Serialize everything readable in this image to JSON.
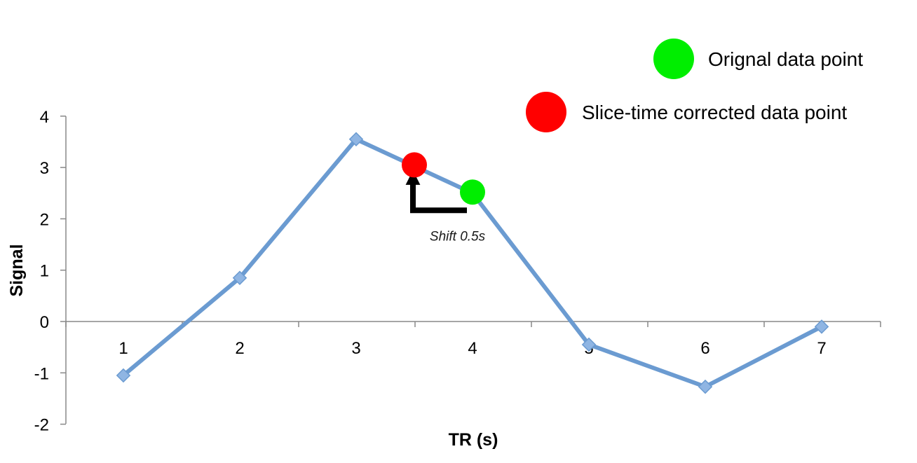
{
  "chart_data": {
    "type": "line",
    "title": "",
    "xlabel": "TR (s)",
    "ylabel": "Signal",
    "x": [
      1,
      2,
      3,
      4,
      5,
      6,
      7
    ],
    "categories": [
      "1",
      "2",
      "3",
      "4",
      "5",
      "6",
      "7"
    ],
    "ylim": [
      -2,
      4
    ],
    "yticks": [
      "4",
      "3",
      "2",
      "1",
      "0",
      "-1",
      "-2"
    ],
    "series": [
      {
        "values": [
          -1.05,
          0.85,
          3.55,
          2.5,
          -0.45,
          -1.27,
          -0.1
        ]
      }
    ],
    "highlight_points": [
      {
        "label": "Orignal data point",
        "x": 4,
        "y": 2.52,
        "color": "#00ee00"
      },
      {
        "label": "Slice-time corrected data point",
        "x": 3.5,
        "y": 3.05,
        "color": "#ff0000"
      }
    ],
    "annotation": {
      "text": "Shift 0.5s"
    },
    "line_color": "#6b9bd1",
    "grid": false,
    "legend_position": "top-right"
  }
}
